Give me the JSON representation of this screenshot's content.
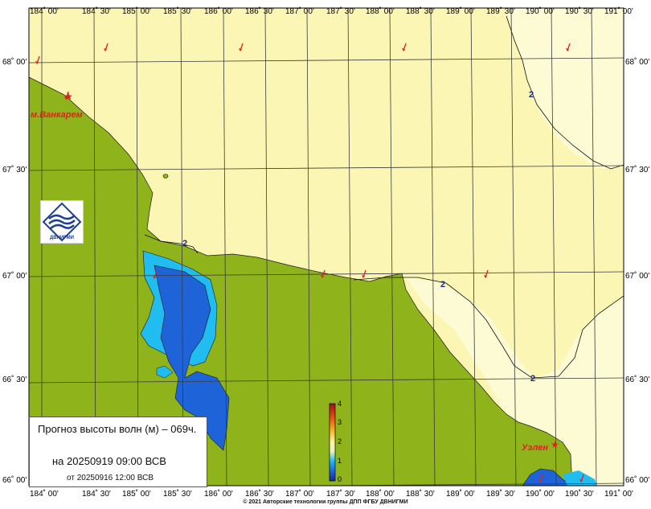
{
  "map": {
    "lon_ticks": [
      "184˚ 00'",
      "184˚ 30'",
      "185˚ 00'",
      "185˚ 30'",
      "186˚ 00'",
      "186˚ 30'",
      "187˚ 00'",
      "187˚ 30'",
      "188˚ 00'",
      "188˚ 30'",
      "189˚ 00'",
      "189˚ 30'",
      "190˚ 00'",
      "190˚ 30'",
      "191˚ 00'"
    ],
    "lat_ticks": [
      "68˚ 00'",
      "67˚ 30'",
      "67˚ 00'",
      "66˚ 30'",
      "66˚ 00'"
    ],
    "places": [
      {
        "id": "vankarem",
        "label": "м.Ванкарем"
      },
      {
        "id": "uelen",
        "label": "Уэлен"
      }
    ],
    "contour_labels": [
      "2",
      "2",
      "2",
      "2"
    ],
    "colors": {
      "land": "#8fb31b",
      "sea_low": "#fdfbd0",
      "sea_mid": "#fbf6b4",
      "lagoon_light": "#22bdf0",
      "lagoon_deep": "#1f63d9",
      "arrow": "#e02020",
      "grid": "#3a3a3a"
    },
    "colorbar": {
      "ticks": [
        "4",
        "3",
        "2",
        "1",
        "0"
      ],
      "range": [
        0,
        4
      ],
      "unit": "м"
    }
  },
  "info": {
    "title": "Прогноз высоты волн (м) – 069ч.",
    "valid_time": "на 20250919 09:00 ВСВ",
    "issued": "от 20250916 12:00 ВСВ"
  },
  "logo": {
    "text": "ДВНИГМИ"
  },
  "footer": {
    "copyright": "© 2021 Авторские технологии группы ДПП ФГБУ ДВНИГМИ"
  }
}
